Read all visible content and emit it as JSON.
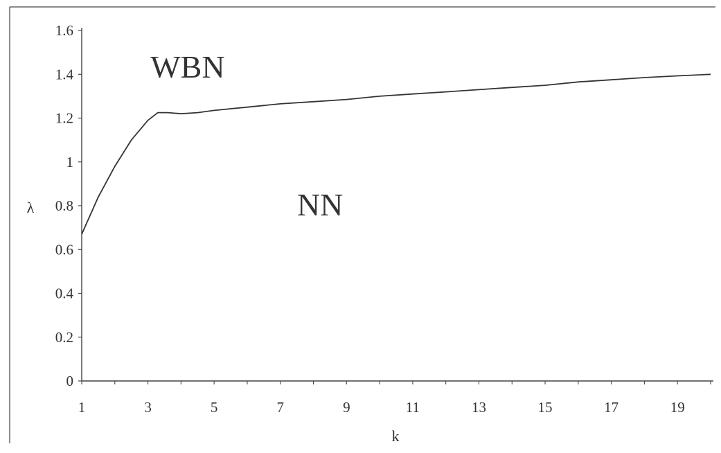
{
  "chart_data": {
    "type": "line",
    "title": "",
    "xlabel": "k",
    "ylabel": "λ",
    "xlim": [
      1,
      20
    ],
    "ylim": [
      0,
      1.6
    ],
    "x_ticks": [
      1,
      3,
      5,
      7,
      9,
      11,
      13,
      15,
      17,
      19
    ],
    "x_tick_labels": [
      "1",
      "3",
      "5",
      "7",
      "9",
      "11",
      "13",
      "15",
      "17",
      "19"
    ],
    "y_ticks": [
      0,
      0.2,
      0.4,
      0.6,
      0.8,
      1.0,
      1.2,
      1.4,
      1.6
    ],
    "y_tick_labels": [
      "0",
      "0.2",
      "0.4",
      "0.6",
      "0.8",
      "1",
      "1.2",
      "1.4",
      "1.6"
    ],
    "grid": false,
    "legend": "none",
    "series": [
      {
        "x": [
          1,
          1.5,
          2,
          2.5,
          3,
          3.3,
          3.6,
          4,
          4.5,
          5,
          6,
          7,
          8,
          9,
          10,
          11,
          12,
          13,
          14,
          15,
          16,
          17,
          18,
          19,
          20
        ],
        "y": [
          0.67,
          0.84,
          0.98,
          1.1,
          1.19,
          1.225,
          1.225,
          1.22,
          1.225,
          1.235,
          1.25,
          1.265,
          1.275,
          1.285,
          1.3,
          1.31,
          1.32,
          1.33,
          1.34,
          1.35,
          1.365,
          1.375,
          1.385,
          1.393,
          1.4
        ],
        "color": "#333333"
      }
    ],
    "annotations": [
      {
        "text": "WBN",
        "x": 4.2,
        "y": 1.43
      },
      {
        "text": "NN",
        "x": 8.2,
        "y": 0.8
      }
    ]
  }
}
